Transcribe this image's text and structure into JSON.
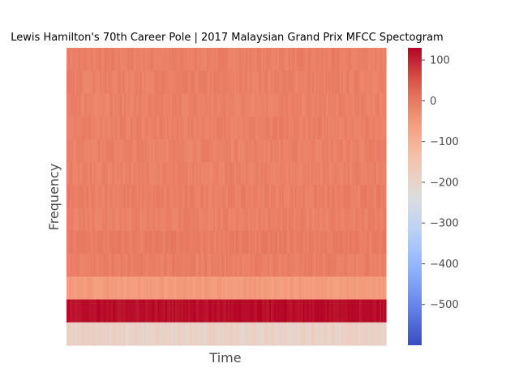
{
  "chart_data": {
    "type": "heatmap",
    "title": "Lewis Hamilton's 70th Career Pole | 2017 Malaysian Grand Prix MFCC Spectogram",
    "xlabel": "Time",
    "ylabel": "Frequency",
    "colormap": "coolwarm",
    "vmin": -600,
    "vmax": 130,
    "colorbar_ticks": [
      100,
      0,
      -100,
      -200,
      -300,
      -400,
      -500
    ],
    "n_coefficients": 13,
    "n_frames": 200,
    "coefficient_means": [
      -190,
      120,
      -55,
      -10,
      -6,
      -12,
      -10,
      -14,
      -13,
      -12,
      -14,
      -12,
      -12
    ],
    "grid": false,
    "colors": {
      "low": "#3b4cc0",
      "mid": "#dddddd",
      "high": "#b40426"
    }
  }
}
